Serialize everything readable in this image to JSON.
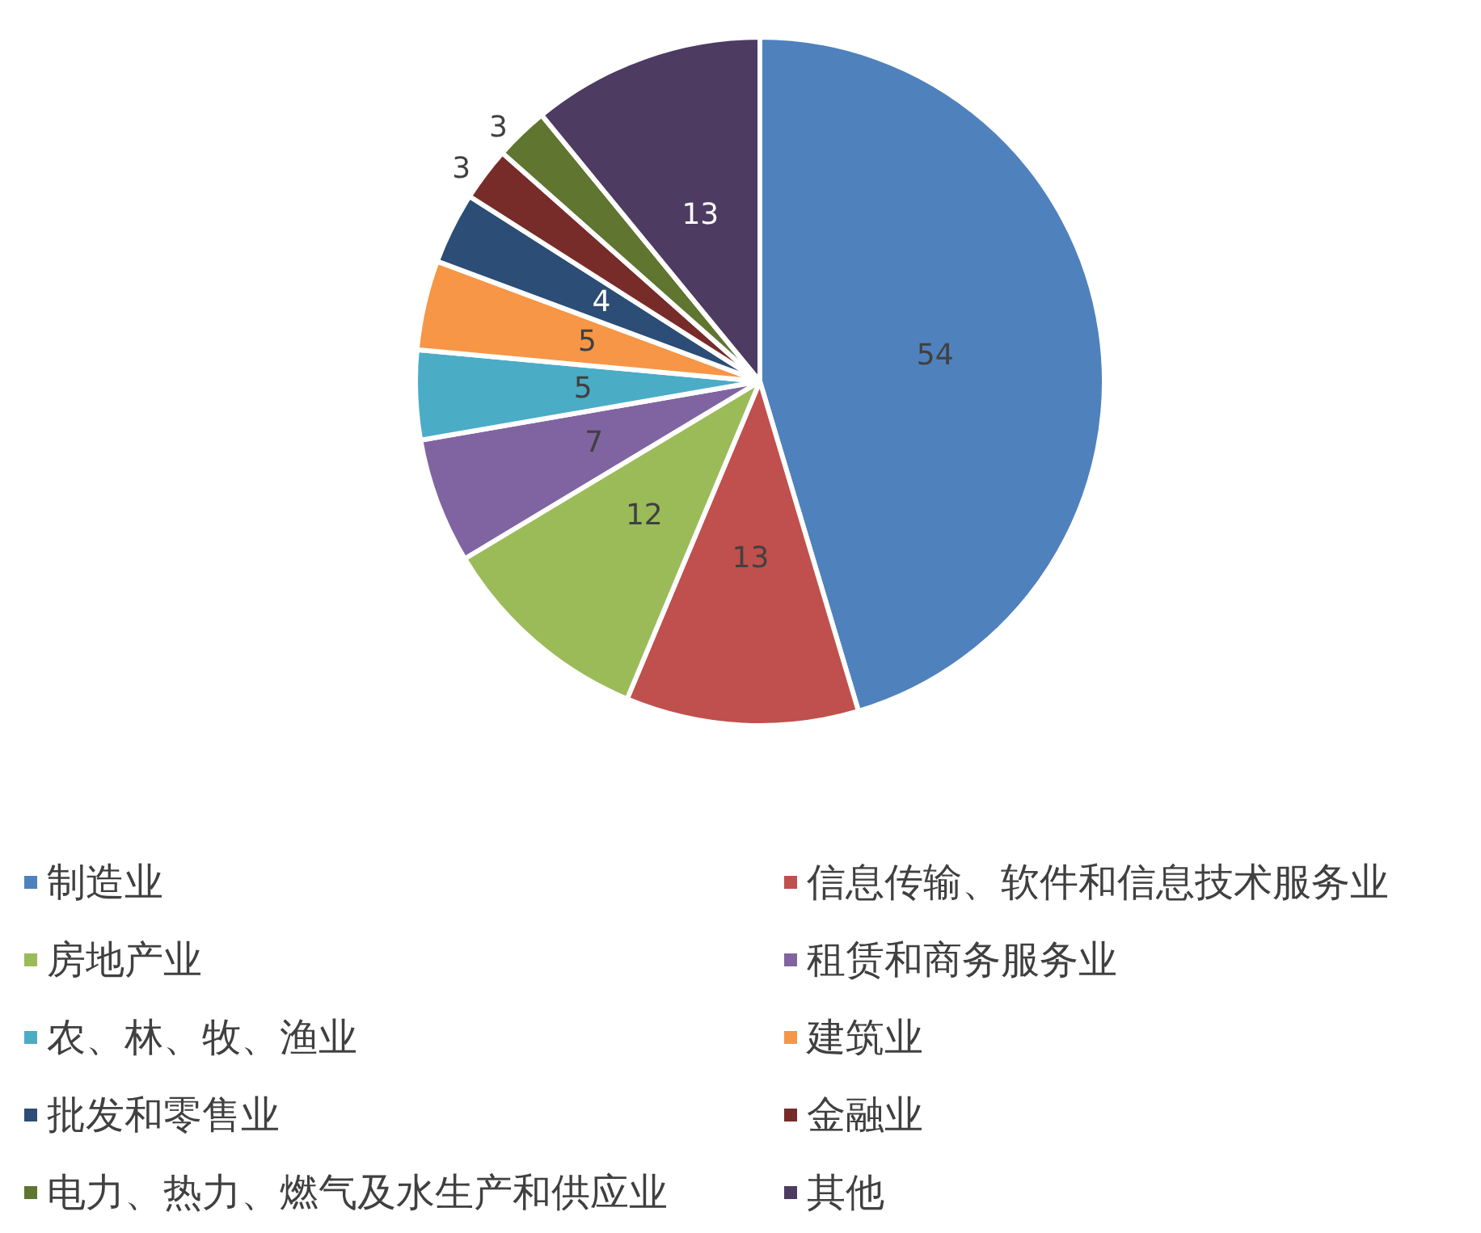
{
  "chart_data": {
    "type": "pie",
    "categories": [
      "制造业",
      "信息传输、软件和信息技术服务业",
      "房地产业",
      "租赁和商务服务业",
      "农、林、牧、渔业",
      "建筑业",
      "批发和零售业",
      "金融业",
      "电力、热力、燃气及水生产和供应业",
      "其他"
    ],
    "values": [
      54,
      13,
      12,
      7,
      5,
      5,
      4,
      3,
      3,
      13
    ],
    "colors": [
      "#4f81bd",
      "#c0504d",
      "#9bbb59",
      "#8064a2",
      "#4bacc6",
      "#f79646",
      "#2c4d75",
      "#772c2a",
      "#5f7530",
      "#4d3b62"
    ],
    "data_labels": true,
    "legend": "bottom"
  }
}
